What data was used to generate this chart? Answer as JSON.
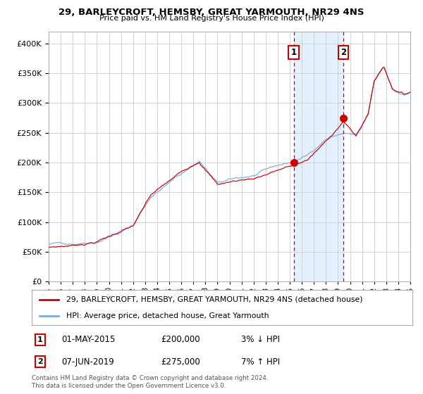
{
  "title": "29, BARLEYCROFT, HEMSBY, GREAT YARMOUTH, NR29 4NS",
  "subtitle": "Price paid vs. HM Land Registry's House Price Index (HPI)",
  "transaction1": {
    "date": "01-MAY-2015",
    "price": 200000,
    "label": "1",
    "pct": "3% ↓ HPI"
  },
  "transaction2": {
    "date": "07-JUN-2019",
    "price": 275000,
    "label": "2",
    "pct": "7% ↑ HPI"
  },
  "legend1": "29, BARLEYCROFT, HEMSBY, GREAT YARMOUTH, NR29 4NS (detached house)",
  "legend2": "HPI: Average price, detached house, Great Yarmouth",
  "footnote1": "Contains HM Land Registry data © Crown copyright and database right 2024.",
  "footnote2": "This data is licensed under the Open Government Licence v3.0.",
  "line_color": "#cc0000",
  "hpi_color": "#7aacdc",
  "background_color": "#ffffff",
  "grid_color": "#cccccc",
  "shade_color": "#ddeeff",
  "ylim": [
    0,
    420000
  ],
  "xlim_start": 1995,
  "xlim_end": 2025,
  "t1_year": 2015.33,
  "t2_year": 2019.44
}
